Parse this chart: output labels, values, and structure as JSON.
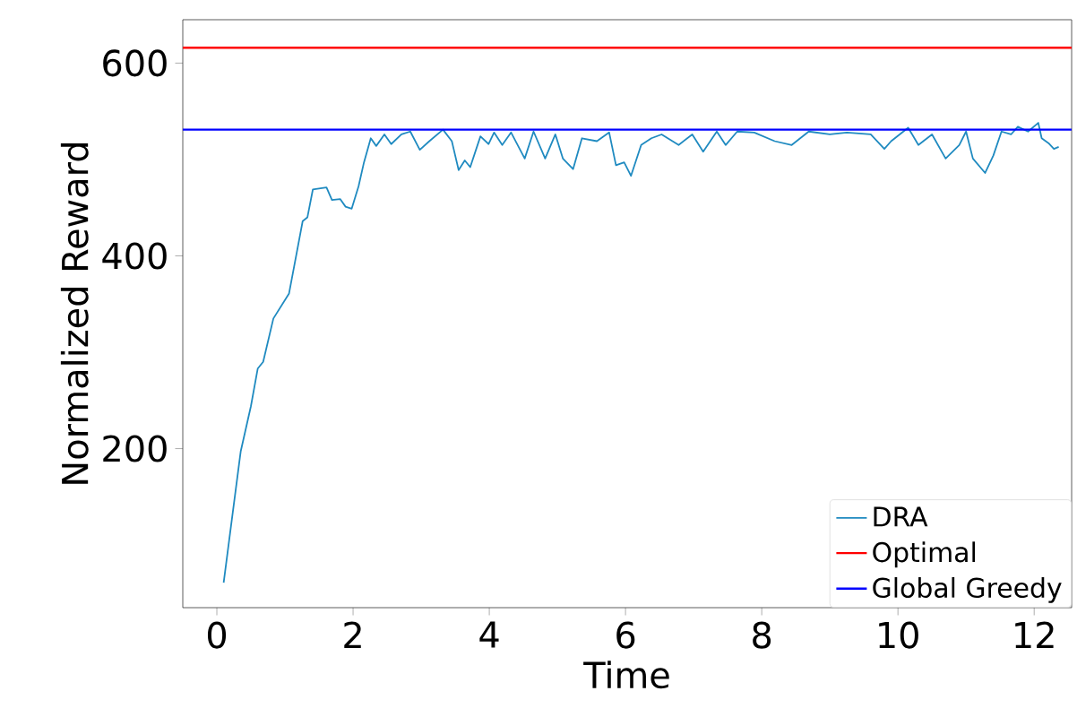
{
  "chart_data": {
    "type": "line",
    "xlabel": "Time",
    "ylabel": "Normalized Reward",
    "xlim": [
      -0.5,
      12.55
    ],
    "ylim": [
      35,
      645
    ],
    "xticks": [
      0,
      2,
      4,
      6,
      8,
      10,
      12
    ],
    "yticks": [
      200,
      400,
      600
    ],
    "grid": false,
    "legend": "bottom right",
    "marker": "none",
    "line_style": "solid",
    "series": [
      {
        "name": "DRA",
        "color": "#1f8ac0",
        "x": [
          0.1,
          0.35,
          0.5,
          0.6,
          0.68,
          0.83,
          1.06,
          1.26,
          1.33,
          1.41,
          1.61,
          1.69,
          1.81,
          1.89,
          1.98,
          2.08,
          2.16,
          2.26,
          2.34,
          2.46,
          2.56,
          2.71,
          2.84,
          2.98,
          3.12,
          3.32,
          3.45,
          3.55,
          3.64,
          3.72,
          3.87,
          3.99,
          4.07,
          4.19,
          4.32,
          4.52,
          4.65,
          4.82,
          4.97,
          5.08,
          5.23,
          5.36,
          5.58,
          5.76,
          5.86,
          5.98,
          6.08,
          6.23,
          6.38,
          6.53,
          6.78,
          6.98,
          7.14,
          7.34,
          7.47,
          7.64,
          7.89,
          8.19,
          8.44,
          8.69,
          9.0,
          9.25,
          9.6,
          9.8,
          9.9,
          10.15,
          10.3,
          10.5,
          10.7,
          10.9,
          11.0,
          11.1,
          11.28,
          11.4,
          11.52,
          11.66,
          11.76,
          11.91,
          12.06,
          12.11,
          12.21,
          12.29,
          12.36
        ],
        "values": [
          61,
          197,
          244,
          283,
          290,
          335,
          361,
          436,
          440,
          469,
          471,
          458,
          459,
          451,
          449,
          472,
          497,
          522,
          514,
          526,
          516,
          526,
          529,
          510,
          519,
          531,
          519,
          489,
          499,
          492,
          524,
          516,
          528,
          515,
          528,
          501,
          529,
          501,
          526,
          501,
          490,
          522,
          519,
          528,
          494,
          497,
          483,
          515,
          522,
          526,
          515,
          526,
          508,
          529,
          515,
          529,
          528,
          519,
          515,
          529,
          526,
          528,
          526,
          511,
          519,
          533,
          515,
          526,
          501,
          515,
          529,
          501,
          486,
          504,
          529,
          526,
          534,
          529,
          538,
          522,
          517,
          511,
          513
        ]
      },
      {
        "name": "Optimal",
        "color": "#ff0000",
        "x": [
          -0.5,
          12.55
        ],
        "values": [
          616,
          616
        ]
      },
      {
        "name": "Global Greedy",
        "color": "#0000ff",
        "x": [
          -0.5,
          12.55
        ],
        "values": [
          531,
          531
        ]
      }
    ]
  }
}
